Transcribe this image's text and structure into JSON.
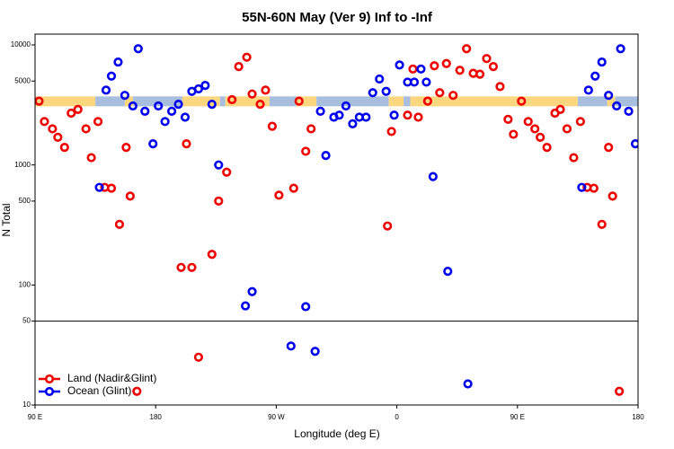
{
  "chart_data": {
    "type": "scatter",
    "title": "55N-60N May (Ver 9)   Inf to -Inf",
    "x_label": "Longitude (deg E)",
    "y_label": "N Total",
    "xlim": [
      90,
      540
    ],
    "xticks": [
      {
        "value": 90,
        "label": "90 E"
      },
      {
        "value": 180,
        "label": "180"
      },
      {
        "value": 270,
        "label": "90 W"
      },
      {
        "value": 360,
        "label": "0"
      },
      {
        "value": 450,
        "label": "90 E"
      },
      {
        "value": 540,
        "label": "180"
      }
    ],
    "ylim": [
      10,
      12300
    ],
    "log_y": true,
    "yticks": [
      10,
      50,
      100,
      500,
      1000,
      5000,
      10000
    ],
    "hline": 50,
    "legend": "lower left",
    "band": {
      "range": [
        3080,
        3725
      ],
      "segments": [
        {
          "x": [
            90,
            135
          ],
          "color": "#fcd77f"
        },
        {
          "x": [
            135,
            157
          ],
          "color": "#a8bedf"
        },
        {
          "x": [
            157,
            163
          ],
          "color": "#fcd77f"
        },
        {
          "x": [
            163,
            200
          ],
          "color": "#a8bedf"
        },
        {
          "x": [
            200,
            228
          ],
          "color": "#fcd77f"
        },
        {
          "x": [
            228,
            232
          ],
          "color": "#a8bedf"
        },
        {
          "x": [
            232,
            265
          ],
          "color": "#fcd77f"
        },
        {
          "x": [
            265,
            285
          ],
          "color": "#a8bedf"
        },
        {
          "x": [
            285,
            300
          ],
          "color": "#fcd77f"
        },
        {
          "x": [
            300,
            354
          ],
          "color": "#a8bedf"
        },
        {
          "x": [
            354,
            365
          ],
          "color": "#fcd77f"
        },
        {
          "x": [
            365,
            370
          ],
          "color": "#a8bedf"
        },
        {
          "x": [
            370,
            495
          ],
          "color": "#fcd77f"
        },
        {
          "x": [
            495,
            517
          ],
          "color": "#a8bedf"
        },
        {
          "x": [
            517,
            523
          ],
          "color": "#fcd77f"
        },
        {
          "x": [
            523,
            540
          ],
          "color": "#a8bedf"
        }
      ]
    },
    "series": [
      {
        "name": "Land (Nadir&Glint)",
        "color": "#ee0000",
        "x": [
          93,
          97,
          103,
          107,
          112,
          117,
          122,
          128,
          132,
          137,
          142,
          147,
          153,
          158,
          161,
          166,
          199,
          203,
          207,
          212,
          222,
          227,
          233,
          237,
          242,
          248,
          252,
          258,
          262,
          267,
          272,
          283,
          287,
          292,
          296,
          353,
          356,
          368,
          372,
          376,
          383,
          388,
          392,
          397,
          402,
          407,
          412,
          417,
          422,
          427,
          432,
          437,
          443,
          447,
          453,
          458,
          463,
          467,
          472,
          478,
          482,
          487,
          492,
          497,
          502,
          507,
          513,
          518,
          521,
          526
        ],
        "values": [
          3400,
          2300,
          2000,
          1700,
          1400,
          2700,
          2900,
          2000,
          1150,
          2300,
          650,
          640,
          320,
          1400,
          550,
          13,
          140,
          1500,
          140,
          25,
          180,
          500,
          870,
          3500,
          6600,
          7900,
          3900,
          3200,
          4200,
          2100,
          560,
          640,
          3400,
          1300,
          2000,
          310,
          1900,
          2600,
          6300,
          2500,
          3400,
          6700,
          4000,
          7000,
          3800,
          6150,
          9300,
          5800,
          5700,
          7700,
          6600,
          4500,
          2400,
          1800,
          3400,
          2300,
          2000,
          1700,
          1400,
          2700,
          2900,
          2000,
          1150,
          2300,
          650,
          640,
          320,
          1400,
          550,
          13
        ]
      },
      {
        "name": "Ocean (Glint)",
        "color": "#0000ee",
        "x": [
          138,
          143,
          147,
          152,
          157,
          163,
          167,
          172,
          178,
          182,
          187,
          192,
          197,
          202,
          207,
          212,
          217,
          222,
          227,
          247,
          252,
          281,
          292,
          299,
          303,
          307,
          313,
          317,
          322,
          327,
          332,
          337,
          342,
          347,
          352,
          358,
          362,
          368,
          373,
          378,
          382,
          387,
          398,
          413,
          498,
          503,
          508,
          513,
          518,
          524,
          527,
          533,
          538
        ],
        "values": [
          650,
          4200,
          5500,
          7200,
          3800,
          3100,
          9300,
          2800,
          1500,
          3100,
          2300,
          2800,
          3200,
          2500,
          4100,
          4300,
          4600,
          3200,
          1000,
          67,
          88,
          31,
          66,
          28,
          2800,
          1200,
          2500,
          2600,
          3100,
          2200,
          2500,
          2500,
          4000,
          5200,
          4100,
          2600,
          6800,
          4900,
          4900,
          6300,
          4900,
          800,
          130,
          15,
          650,
          4200,
          5500,
          7200,
          3800,
          3100,
          9300,
          2800,
          1500
        ]
      }
    ]
  }
}
